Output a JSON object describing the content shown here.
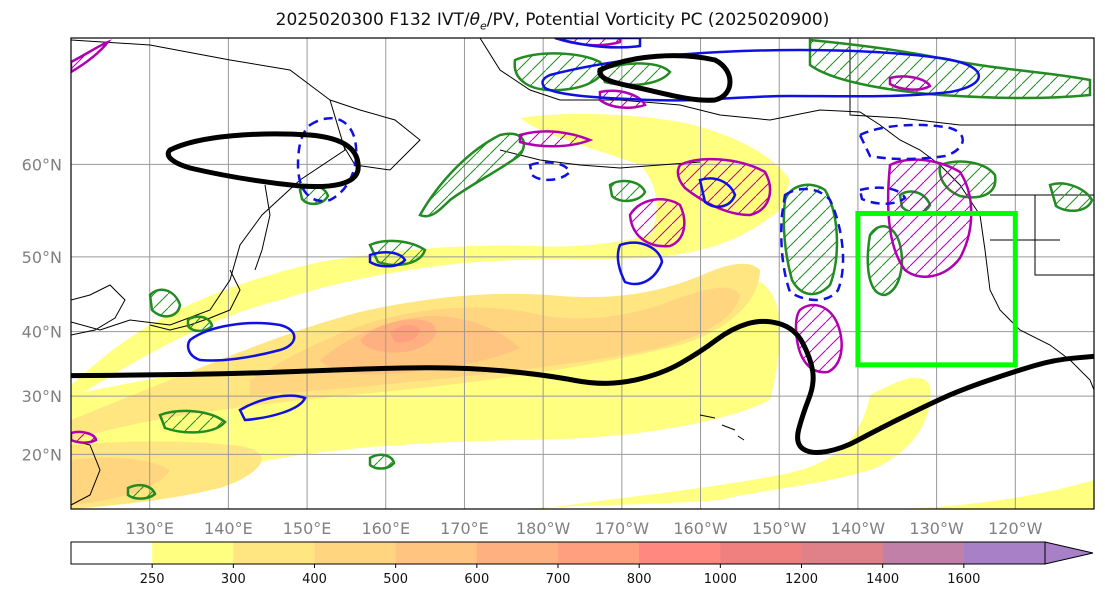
{
  "title_parts": {
    "prefix": "2025020300 F132 IVT/",
    "theta": "θ",
    "theta_sub": "e",
    "suffix": "/PV, Potential Vorticity PC (2025020900)"
  },
  "map": {
    "lon_range": [
      120,
      250
    ],
    "lat_range": [
      10,
      70
    ],
    "lat_labels": [
      {
        "lat": 60,
        "text": "60°N"
      },
      {
        "lat": 50,
        "text": "50°N"
      },
      {
        "lat": 40,
        "text": "40°N"
      },
      {
        "lat": 30,
        "text": "30°N"
      },
      {
        "lat": 20,
        "text": "20°N"
      }
    ],
    "lon_labels": [
      {
        "lon": 130,
        "text": "130°E"
      },
      {
        "lon": 140,
        "text": "140°E"
      },
      {
        "lon": 150,
        "text": "150°E"
      },
      {
        "lon": 160,
        "text": "160°E"
      },
      {
        "lon": 170,
        "text": "170°E"
      },
      {
        "lon": 180,
        "text": "180°W"
      },
      {
        "lon": 190,
        "text": "170°W"
      },
      {
        "lon": 200,
        "text": "160°W"
      },
      {
        "lon": 210,
        "text": "150°W"
      },
      {
        "lon": 220,
        "text": "140°W"
      },
      {
        "lon": 230,
        "text": "130°W"
      },
      {
        "lon": 240,
        "text": "120°W"
      }
    ],
    "highlight_box": {
      "lon_min": 220,
      "lon_max": 240,
      "lat_min": 35,
      "lat_max": 55,
      "color": "#00ff00"
    },
    "pv_pc_line": {
      "color": "#000000",
      "points": [
        [
          120,
          33.3
        ],
        [
          130,
          33.4
        ],
        [
          140,
          33.6
        ],
        [
          150,
          34
        ],
        [
          160,
          34.5
        ],
        [
          170,
          34.6
        ],
        [
          180,
          33.5
        ],
        [
          188,
          31.6
        ],
        [
          195,
          33.5
        ],
        [
          200,
          37
        ],
        [
          204,
          40.5
        ],
        [
          208,
          41.8
        ],
        [
          212,
          40.5
        ],
        [
          214,
          36
        ],
        [
          214.5,
          32
        ],
        [
          213,
          27
        ],
        [
          212,
          22
        ],
        [
          214,
          20
        ],
        [
          218,
          21
        ],
        [
          222,
          24
        ],
        [
          228,
          28
        ],
        [
          233,
          31
        ],
        [
          240,
          34
        ],
        [
          245,
          35.8
        ],
        [
          250,
          36.3
        ]
      ]
    }
  },
  "colorbar": {
    "ticks": [
      "250",
      "300",
      "400",
      "500",
      "600",
      "700",
      "800",
      "1000",
      "1200",
      "1400",
      "1600"
    ],
    "colors": [
      "#ffffff",
      "#ffff80",
      "#ffe680",
      "#ffd580",
      "#ffc480",
      "#ffb080",
      "#ff9f80",
      "#ff8880",
      "#f08080",
      "#e08088",
      "#c080a8",
      "#a880c8"
    ]
  }
}
